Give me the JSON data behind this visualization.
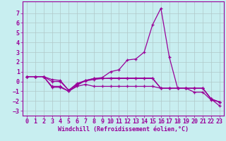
{
  "xlabel": "Windchill (Refroidissement éolien,°C)",
  "bg_color": "#c8eef0",
  "grid_color": "#b0c8c8",
  "line_color": "#990099",
  "xlim": [
    -0.5,
    23.5
  ],
  "ylim": [
    -3.5,
    8.2
  ],
  "xticks": [
    0,
    1,
    2,
    3,
    4,
    5,
    6,
    7,
    8,
    9,
    10,
    11,
    12,
    13,
    14,
    15,
    16,
    17,
    18,
    19,
    20,
    21,
    22,
    23
  ],
  "yticks": [
    -3,
    -2,
    -1,
    0,
    1,
    2,
    3,
    4,
    5,
    6,
    7
  ],
  "line1_x": [
    0,
    1,
    2,
    3,
    4,
    5,
    6,
    7,
    8,
    9,
    10,
    11,
    12,
    13,
    14,
    15,
    16,
    17,
    18,
    19,
    20,
    21,
    22,
    23
  ],
  "line1_y": [
    0.5,
    0.5,
    0.5,
    0.2,
    0.1,
    -0.9,
    -0.2,
    0.1,
    0.3,
    0.4,
    1.0,
    1.2,
    2.2,
    2.3,
    3.0,
    5.8,
    7.5,
    2.5,
    -0.7,
    -0.7,
    -1.1,
    -1.1,
    -1.9,
    -2.1
  ],
  "line2_x": [
    0,
    1,
    2,
    3,
    4,
    5,
    6,
    7,
    8,
    9,
    10,
    11,
    12,
    13,
    14,
    15,
    16,
    17,
    18,
    19,
    20,
    21,
    22,
    23
  ],
  "line2_y": [
    0.5,
    0.5,
    0.5,
    -0.6,
    -0.6,
    -1.0,
    -0.4,
    0.1,
    0.3,
    0.3,
    0.3,
    0.3,
    0.3,
    0.3,
    0.3,
    0.3,
    -0.7,
    -0.7,
    -0.7,
    -0.7,
    -0.7,
    -0.7,
    -1.8,
    -2.1
  ],
  "line3_x": [
    0,
    1,
    2,
    3,
    4,
    5,
    6,
    7,
    8,
    9,
    10,
    11,
    12,
    13,
    14,
    15,
    16,
    17,
    18,
    19,
    20,
    21,
    22,
    23
  ],
  "line3_y": [
    0.5,
    0.5,
    0.5,
    -0.5,
    -0.5,
    -1.0,
    -0.5,
    -0.3,
    -0.5,
    -0.5,
    -0.5,
    -0.5,
    -0.5,
    -0.5,
    -0.5,
    -0.5,
    -0.7,
    -0.7,
    -0.7,
    -0.7,
    -0.7,
    -0.7,
    -1.8,
    -2.5
  ],
  "line4_x": [
    0,
    1,
    2,
    3,
    4,
    5,
    6,
    7,
    8,
    9,
    10,
    11,
    12,
    13,
    14,
    15,
    16,
    17,
    18,
    19,
    20,
    21,
    22,
    23
  ],
  "line4_y": [
    0.5,
    0.5,
    0.5,
    0.0,
    0.0,
    -0.9,
    -0.3,
    0.05,
    0.2,
    0.3,
    0.35,
    0.35,
    0.35,
    0.35,
    0.35,
    0.35,
    -0.7,
    -0.7,
    -0.7,
    -0.7,
    -0.7,
    -0.7,
    -1.8,
    -2.1
  ],
  "xlabel_fontsize": 6,
  "tick_fontsize": 6
}
